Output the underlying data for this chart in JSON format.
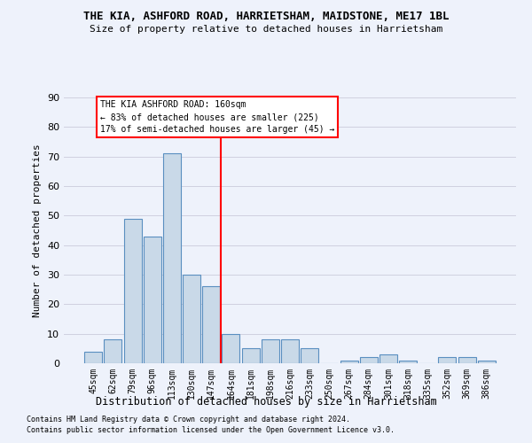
{
  "title": "THE KIA, ASHFORD ROAD, HARRIETSHAM, MAIDSTONE, ME17 1BL",
  "subtitle": "Size of property relative to detached houses in Harrietsham",
  "xlabel": "Distribution of detached houses by size in Harrietsham",
  "ylabel": "Number of detached properties",
  "categories": [
    "45sqm",
    "62sqm",
    "79sqm",
    "96sqm",
    "113sqm",
    "130sqm",
    "147sqm",
    "164sqm",
    "181sqm",
    "198sqm",
    "216sqm",
    "233sqm",
    "250sqm",
    "267sqm",
    "284sqm",
    "301sqm",
    "318sqm",
    "335sqm",
    "352sqm",
    "369sqm",
    "386sqm"
  ],
  "values": [
    4,
    8,
    49,
    43,
    71,
    30,
    26,
    10,
    5,
    8,
    8,
    5,
    0,
    1,
    2,
    3,
    1,
    0,
    2,
    2,
    1
  ],
  "bar_color": "#c9d9e8",
  "bar_edge_color": "#5a8fc0",
  "grid_color": "#d0d0e0",
  "background_color": "#eef2fb",
  "red_line_x": 6.5,
  "annotation_box_text": "THE KIA ASHFORD ROAD: 160sqm\n← 83% of detached houses are smaller (225)\n17% of semi-detached houses are larger (45) →",
  "footer_line1": "Contains HM Land Registry data © Crown copyright and database right 2024.",
  "footer_line2": "Contains public sector information licensed under the Open Government Licence v3.0.",
  "ylim": [
    0,
    90
  ],
  "yticks": [
    0,
    10,
    20,
    30,
    40,
    50,
    60,
    70,
    80,
    90
  ]
}
